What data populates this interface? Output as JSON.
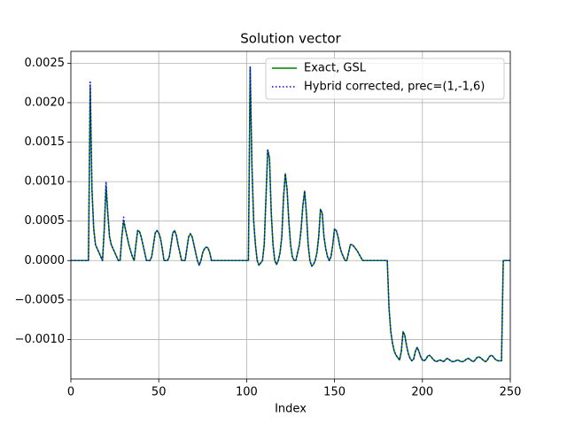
{
  "chart_data": {
    "type": "line",
    "title": "Solution vector",
    "x_label": "Index",
    "xlim": [
      0,
      250
    ],
    "xticks": [
      0,
      50,
      100,
      150,
      200,
      250
    ],
    "ylim": [
      -0.0015,
      0.00265
    ],
    "yticks": [
      {
        "value": -0.001,
        "label": "−0.0010"
      },
      {
        "value": -0.0005,
        "label": "−0.0005"
      },
      {
        "value": 0,
        "label": "0.0000"
      },
      {
        "value": 0.0005,
        "label": "0.0005"
      },
      {
        "value": 0.001,
        "label": "0.0010"
      },
      {
        "value": 0.0015,
        "label": "0.0015"
      },
      {
        "value": 0.002,
        "label": "0.0020"
      },
      {
        "value": 0.0025,
        "label": "0.0025"
      }
    ],
    "grid": true,
    "legend": "upper right",
    "x": [
      0,
      10,
      11,
      12,
      13,
      14,
      15,
      16,
      17,
      18,
      19,
      20,
      21,
      22,
      23,
      24,
      25,
      26,
      27,
      28,
      29,
      30,
      31,
      32,
      33,
      34,
      35,
      36,
      37,
      38,
      39,
      40,
      41,
      42,
      43,
      44,
      45,
      46,
      47,
      48,
      49,
      50,
      51,
      52,
      53,
      54,
      55,
      56,
      57,
      58,
      59,
      60,
      61,
      62,
      63,
      64,
      65,
      66,
      67,
      68,
      69,
      70,
      71,
      72,
      73,
      74,
      75,
      76,
      77,
      78,
      79,
      80,
      101,
      102,
      103,
      104,
      105,
      106,
      107,
      108,
      109,
      110,
      111,
      112,
      113,
      114,
      115,
      116,
      117,
      118,
      119,
      120,
      121,
      122,
      123,
      124,
      125,
      126,
      127,
      128,
      129,
      130,
      131,
      132,
      133,
      134,
      135,
      136,
      137,
      138,
      139,
      140,
      141,
      142,
      143,
      144,
      145,
      146,
      147,
      148,
      149,
      150,
      151,
      152,
      153,
      154,
      155,
      156,
      157,
      158,
      159,
      160,
      161,
      162,
      163,
      164,
      165,
      166,
      180,
      181,
      182,
      183,
      184,
      185,
      186,
      187,
      188,
      189,
      190,
      191,
      192,
      193,
      194,
      195,
      196,
      197,
      198,
      199,
      200,
      201,
      202,
      203,
      204,
      205,
      206,
      207,
      208,
      209,
      210,
      211,
      212,
      213,
      214,
      215,
      216,
      217,
      218,
      219,
      220,
      221,
      222,
      223,
      224,
      225,
      226,
      227,
      228,
      229,
      230,
      231,
      232,
      233,
      234,
      235,
      236,
      237,
      238,
      239,
      240,
      241,
      242,
      243,
      244,
      245,
      246,
      250
    ],
    "series": [
      {
        "name": "Exact, GSL",
        "color": "#008000",
        "linestyle": "solid",
        "values": [
          0,
          0,
          0.0022,
          0.0009,
          0.0004,
          0.0002,
          0.00015,
          0.0001,
          5e-05,
          0,
          0.0004,
          0.00095,
          0.0006,
          0.0003,
          0.0002,
          0.00015,
          0.0001,
          5e-05,
          0,
          0,
          0.0003,
          0.0005,
          0.0004,
          0.0003,
          0.0002,
          0.00012,
          5e-05,
          0,
          0.0002,
          0.00038,
          0.00037,
          0.0003,
          0.0002,
          0.0001,
          0,
          0,
          0,
          5e-05,
          0.0002,
          0.00035,
          0.00038,
          0.00035,
          0.00028,
          0.00015,
          0,
          0,
          0,
          5e-05,
          0.0002,
          0.00035,
          0.00038,
          0.00032,
          0.0002,
          0.0001,
          0,
          0,
          0,
          0.00015,
          0.0003,
          0.00034,
          0.0003,
          0.0002,
          0.0001,
          0,
          -6e-05,
          0,
          0.0001,
          0.00015,
          0.00017,
          0.00016,
          0.0001,
          0,
          0,
          0.00245,
          0.0012,
          0.0005,
          0.0002,
          0,
          -6e-05,
          -3e-05,
          0,
          0.0002,
          0.0008,
          0.0014,
          0.0013,
          0.0006,
          0.0002,
          0,
          -5e-05,
          0,
          0.0001,
          0.0003,
          0.0008,
          0.0011,
          0.0009,
          0.0005,
          0.0002,
          5e-05,
          0,
          0,
          0.0001,
          0.0002,
          0.0004,
          0.0007,
          0.00088,
          0.0006,
          0.0002,
          0,
          -7e-05,
          -5e-05,
          0,
          0.0001,
          0.0003,
          0.00065,
          0.0006,
          0.0003,
          0.00015,
          5e-05,
          0,
          5e-05,
          0.0002,
          0.0004,
          0.00038,
          0.0003,
          0.00018,
          0.0001,
          5e-05,
          0,
          0,
          0.0001,
          0.0002,
          0.0002,
          0.00018,
          0.00015,
          0.00012,
          8e-05,
          4e-05,
          0,
          0,
          -0.0006,
          -0.0009,
          -0.00105,
          -0.00115,
          -0.0012,
          -0.00123,
          -0.00126,
          -0.00115,
          -0.0009,
          -0.00095,
          -0.00108,
          -0.00118,
          -0.00124,
          -0.00127,
          -0.00125,
          -0.00115,
          -0.0011,
          -0.00115,
          -0.00122,
          -0.00126,
          -0.00127,
          -0.00125,
          -0.00121,
          -0.0012,
          -0.00122,
          -0.00125,
          -0.00127,
          -0.00128,
          -0.00127,
          -0.00126,
          -0.00127,
          -0.00128,
          -0.00126,
          -0.00124,
          -0.00125,
          -0.00127,
          -0.00128,
          -0.00128,
          -0.00127,
          -0.00126,
          -0.00127,
          -0.00128,
          -0.00128,
          -0.00127,
          -0.00125,
          -0.00124,
          -0.00125,
          -0.00127,
          -0.00128,
          -0.00126,
          -0.00123,
          -0.00122,
          -0.00123,
          -0.00125,
          -0.00127,
          -0.00128,
          -0.00126,
          -0.00122,
          -0.0012,
          -0.00121,
          -0.00124,
          -0.00126,
          -0.00127,
          -0.00127,
          -0.00127,
          0,
          0
        ]
      },
      {
        "name": "Hybrid corrected, prec=(1,-1,6)",
        "color": "#0000ff",
        "linestyle": "dotted",
        "values": [
          0,
          0,
          0.00226,
          0.0009,
          0.0004,
          0.0002,
          0.00015,
          0.0001,
          5e-05,
          0,
          0.0004,
          0.001,
          0.0006,
          0.0003,
          0.0002,
          0.00015,
          0.0001,
          5e-05,
          0,
          0,
          0.0003,
          0.00055,
          0.0004,
          0.0003,
          0.0002,
          0.00012,
          5e-05,
          0,
          0.0002,
          0.00038,
          0.00037,
          0.0003,
          0.0002,
          0.0001,
          0,
          0,
          0,
          5e-05,
          0.0002,
          0.00035,
          0.00038,
          0.00035,
          0.00028,
          0.00015,
          0,
          0,
          0,
          5e-05,
          0.0002,
          0.00035,
          0.00038,
          0.00032,
          0.0002,
          0.0001,
          0,
          0,
          0,
          0.00015,
          0.0003,
          0.00034,
          0.0003,
          0.0002,
          0.0001,
          0,
          -6e-05,
          0,
          0.0001,
          0.00015,
          0.00017,
          0.00016,
          0.0001,
          0,
          0,
          0.00245,
          0.0012,
          0.0005,
          0.0002,
          0,
          -6e-05,
          -3e-05,
          0,
          0.0002,
          0.0008,
          0.0014,
          0.0013,
          0.0006,
          0.0002,
          0,
          -5e-05,
          0,
          0.0001,
          0.0003,
          0.0008,
          0.0011,
          0.0009,
          0.0005,
          0.0002,
          5e-05,
          0,
          0,
          0.0001,
          0.0002,
          0.0004,
          0.0007,
          0.00088,
          0.0006,
          0.0002,
          0,
          -7e-05,
          -5e-05,
          0,
          0.0001,
          0.0003,
          0.00065,
          0.0006,
          0.0003,
          0.00015,
          5e-05,
          0,
          5e-05,
          0.0002,
          0.0004,
          0.00038,
          0.0003,
          0.00018,
          0.0001,
          5e-05,
          0,
          0,
          0.0001,
          0.0002,
          0.0002,
          0.00018,
          0.00015,
          0.00012,
          8e-05,
          4e-05,
          0,
          0,
          -0.0006,
          -0.0009,
          -0.00105,
          -0.00115,
          -0.0012,
          -0.00123,
          -0.00126,
          -0.00115,
          -0.0009,
          -0.00095,
          -0.00108,
          -0.00118,
          -0.00124,
          -0.00127,
          -0.00125,
          -0.00115,
          -0.0011,
          -0.00115,
          -0.00122,
          -0.00126,
          -0.00127,
          -0.00125,
          -0.00121,
          -0.0012,
          -0.00122,
          -0.00125,
          -0.00127,
          -0.00128,
          -0.00127,
          -0.00126,
          -0.00127,
          -0.00128,
          -0.00126,
          -0.00124,
          -0.00125,
          -0.00127,
          -0.00128,
          -0.00128,
          -0.00127,
          -0.00126,
          -0.00127,
          -0.00128,
          -0.00128,
          -0.00127,
          -0.00125,
          -0.00124,
          -0.00125,
          -0.00127,
          -0.00128,
          -0.00126,
          -0.00123,
          -0.00122,
          -0.00123,
          -0.00125,
          -0.00127,
          -0.00128,
          -0.00126,
          -0.00122,
          -0.0012,
          -0.00121,
          -0.00124,
          -0.00126,
          -0.00127,
          -0.00127,
          -0.00127,
          0,
          0
        ]
      }
    ]
  }
}
